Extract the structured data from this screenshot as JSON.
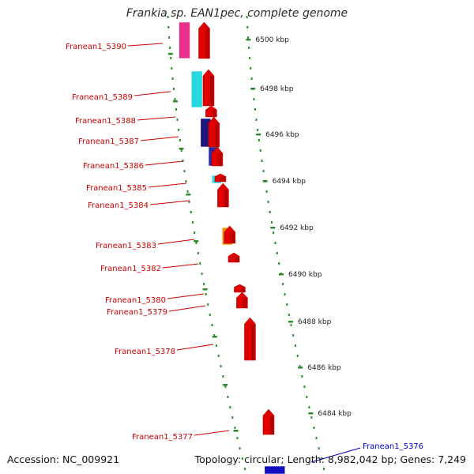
{
  "title": "Frankia sp. EAN1pec, complete genome",
  "footer": {
    "accession": "Accession: NC_009921",
    "summary": "Topology: circular; Length: 8,982,042 bp; Genes: 7,249"
  },
  "colors": {
    "gene_label": "#cc0000",
    "selected_label": "#0000cc",
    "ruler": "#2e8b2e",
    "backbone": "#888888"
  },
  "ruler_ticks": [
    {
      "label": "6500 kbp",
      "kbp": 6500
    },
    {
      "label": "6498 kbp",
      "kbp": 6498
    },
    {
      "label": "6496 kbp",
      "kbp": 6496
    },
    {
      "label": "6494 kbp",
      "kbp": 6494
    },
    {
      "label": "6492 kbp",
      "kbp": 6492
    },
    {
      "label": "6490 kbp",
      "kbp": 6490
    },
    {
      "label": "6488 kbp",
      "kbp": 6488
    },
    {
      "label": "6486 kbp",
      "kbp": 6486
    },
    {
      "label": "6484 kbp",
      "kbp": 6484
    }
  ],
  "genes": [
    {
      "label": "Franean1_5390",
      "color": "#e8308a"
    },
    {
      "label": "Franean1_5389",
      "color": "#28d8e0"
    },
    {
      "label": "Franean1_5388",
      "color": "#1a1a80"
    },
    {
      "label": "Franean1_5387",
      "color": "#1a1a80"
    },
    {
      "label": "Franean1_5386",
      "color": "#2a2aa0"
    },
    {
      "label": "Franean1_5385",
      "color": "#28d8e0"
    },
    {
      "label": "Franean1_5384",
      "color": "#e00000"
    },
    {
      "label": "Franean1_5383",
      "color": "#f08c00"
    },
    {
      "label": "Franean1_5382",
      "color": "#e00000"
    },
    {
      "label": "Franean1_5380",
      "color": "#e00000"
    },
    {
      "label": "Franean1_5379",
      "color": "#e00000"
    },
    {
      "label": "Franean1_5378",
      "color": "#e00000"
    },
    {
      "label": "Franean1_5377",
      "color": "#e00000"
    },
    {
      "label": "Franean1_5376",
      "color": "#1010c0",
      "selected": true
    }
  ]
}
